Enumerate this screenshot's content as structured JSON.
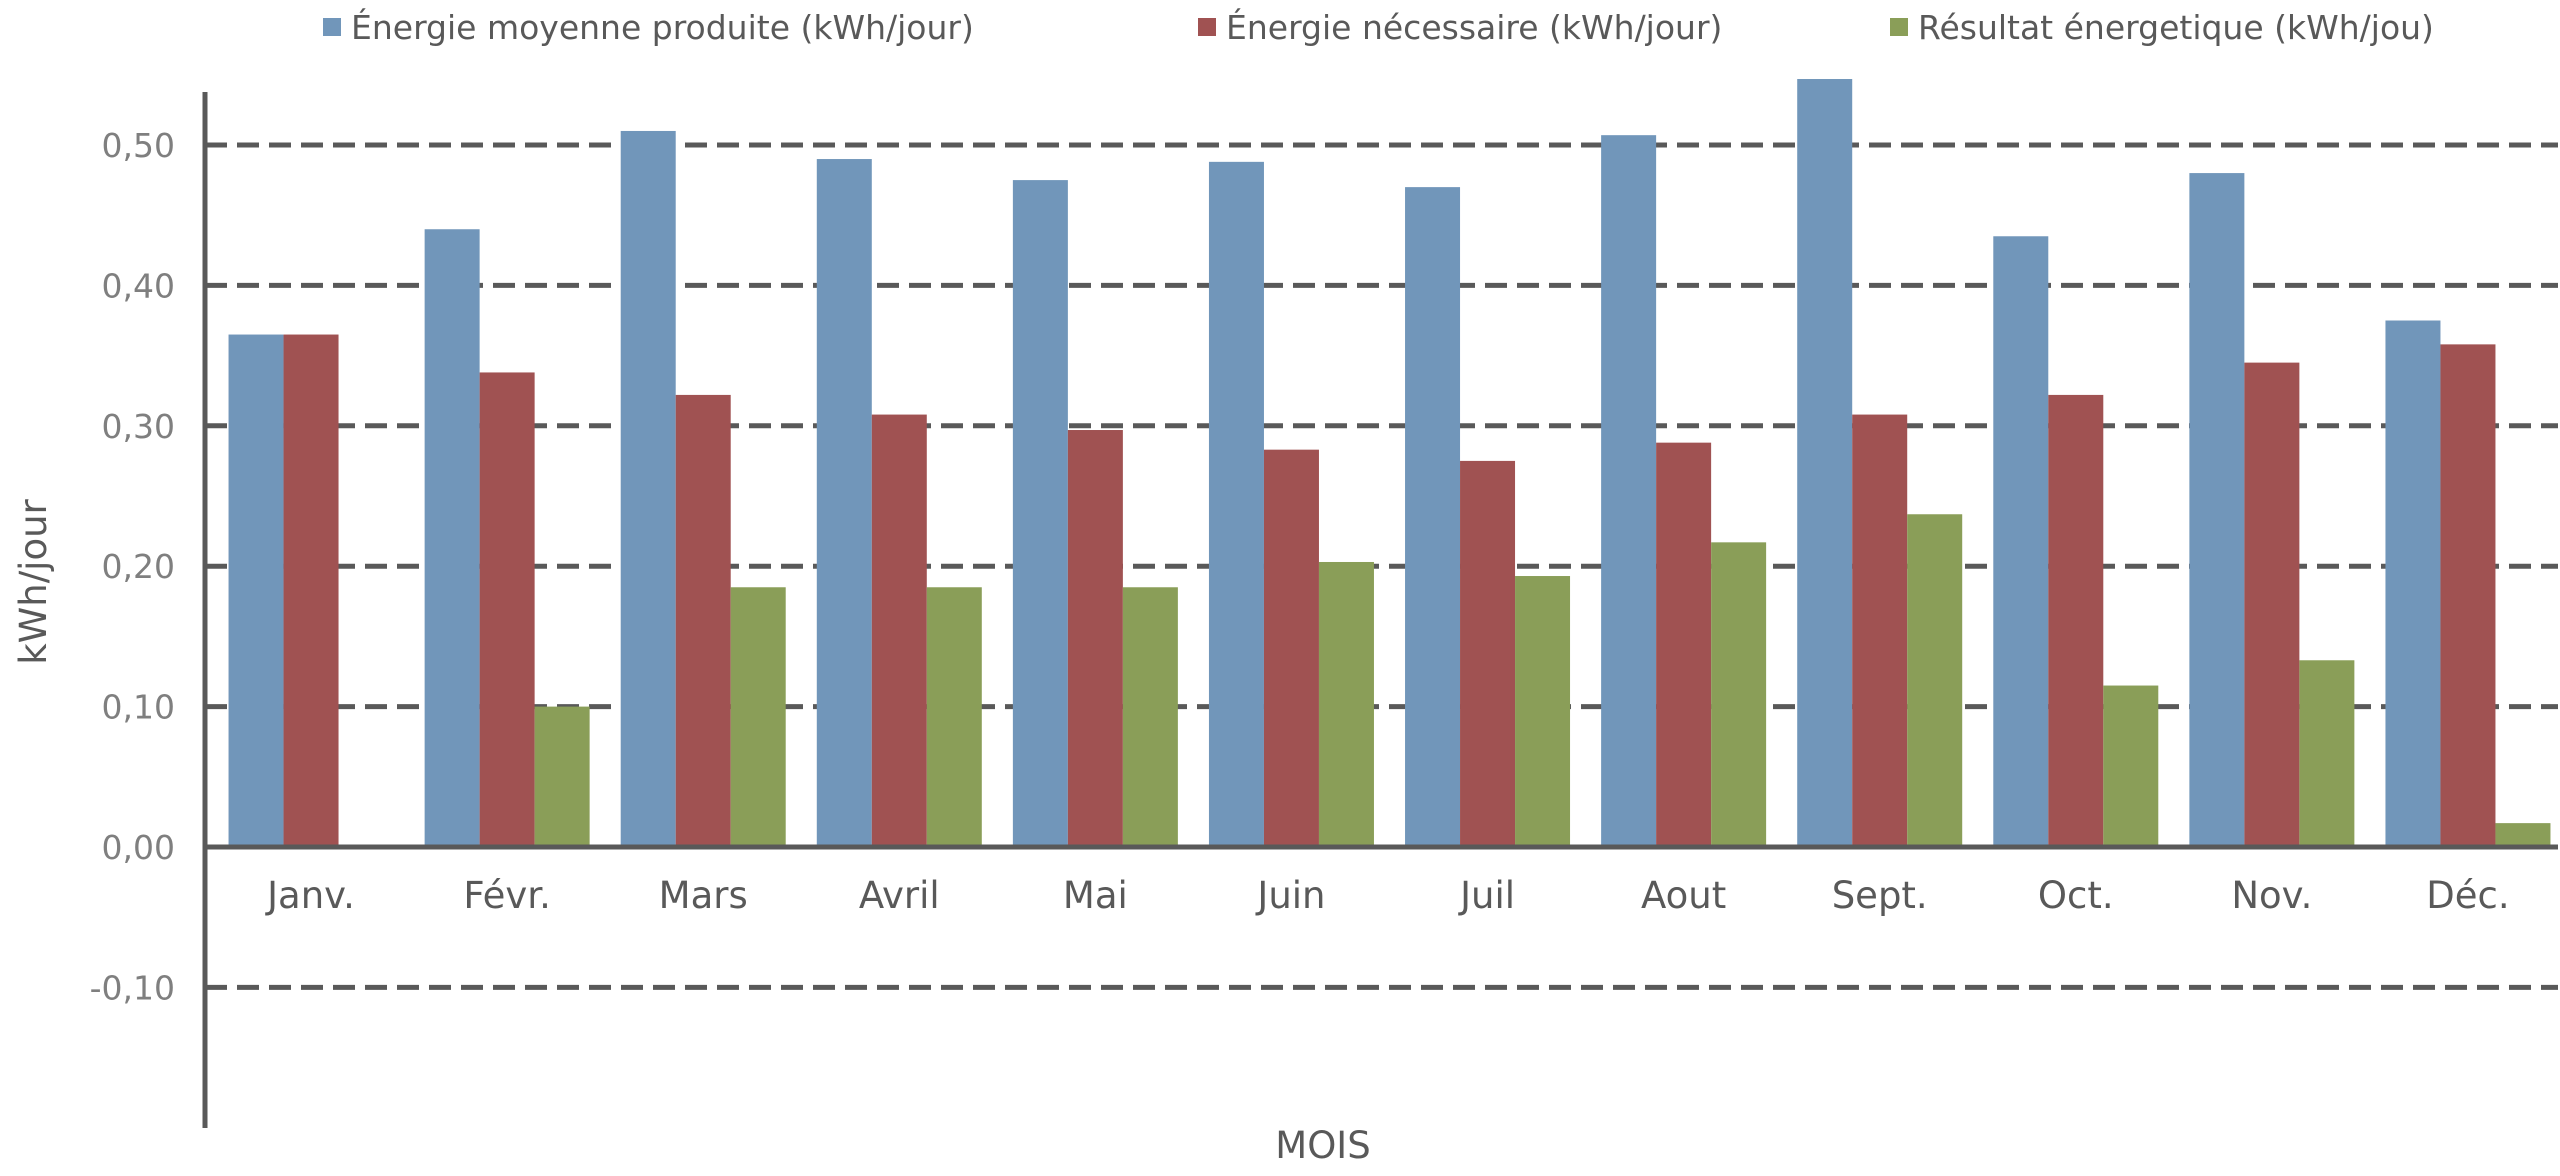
{
  "chart_data": {
    "type": "bar",
    "categories": [
      "Janv.",
      "Févr.",
      "Mars",
      "Avril",
      "Mai",
      "Juin",
      "Juil",
      "Aout",
      "Sept.",
      "Oct.",
      "Nov.",
      "Déc."
    ],
    "series": [
      {
        "name": "Énergie moyenne produite (kWh/jour)",
        "color": "#7196ba",
        "values": [
          0.365,
          0.44,
          0.51,
          0.49,
          0.475,
          0.488,
          0.47,
          0.507,
          0.547,
          0.435,
          0.48,
          0.375
        ]
      },
      {
        "name": "Énergie nécessaire (kWh/jour)",
        "color": "#a05252",
        "values": [
          0.365,
          0.338,
          0.322,
          0.308,
          0.297,
          0.283,
          0.275,
          0.288,
          0.308,
          0.322,
          0.345,
          0.358
        ]
      },
      {
        "name": "Résultat énergetique (kWh/jou)",
        "color": "#8a9e58",
        "values": [
          0.0,
          0.1,
          0.185,
          0.185,
          0.185,
          0.203,
          0.193,
          0.217,
          0.237,
          0.115,
          0.133,
          0.017
        ]
      }
    ],
    "yticks": [
      "0,50",
      "0,40",
      "0,30",
      "0,20",
      "0,10",
      "0,00",
      "-0,10"
    ],
    "ytick_values": [
      0.5,
      0.4,
      0.3,
      0.2,
      0.1,
      0.0,
      -0.1
    ],
    "xlabel": "MOIS",
    "ylabel": "kWh/jour",
    "ylim": [
      -0.2,
      0.55
    ],
    "grid": "dashed horizontal",
    "legend": "top"
  }
}
